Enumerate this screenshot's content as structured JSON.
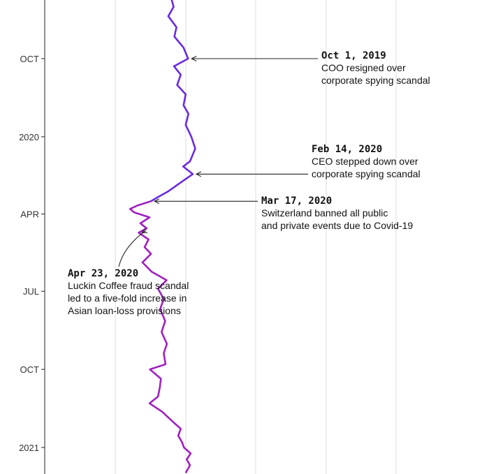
{
  "chart_data": {
    "type": "line",
    "orientation": "vertical-time",
    "title": "",
    "xlabel": "",
    "ylabel": "",
    "grid": true,
    "x_gridlines": 5,
    "time_axis": {
      "labels": [
        "OCT",
        "2020",
        "APR",
        "JUL",
        "OCT",
        "2021"
      ]
    },
    "line_colors": {
      "before": "#6a2be0",
      "after": "#a020c0"
    },
    "series": [
      {
        "points": [
          [
            "2019-07-10",
            0.378
          ],
          [
            "2019-07-20",
            0.356
          ],
          [
            "2019-08-01",
            0.364
          ],
          [
            "2019-08-12",
            0.349
          ],
          [
            "2019-08-25",
            0.372
          ],
          [
            "2019-09-05",
            0.366
          ],
          [
            "2019-09-18",
            0.392
          ],
          [
            "2019-10-01",
            0.405
          ],
          [
            "2019-10-10",
            0.365
          ],
          [
            "2019-10-20",
            0.384
          ],
          [
            "2019-11-01",
            0.374
          ],
          [
            "2019-11-12",
            0.398
          ],
          [
            "2019-11-25",
            0.392
          ],
          [
            "2019-12-05",
            0.406
          ],
          [
            "2019-12-18",
            0.398
          ],
          [
            "2020-01-01",
            0.414
          ],
          [
            "2020-01-15",
            0.425
          ],
          [
            "2020-01-30",
            0.41
          ],
          [
            "2020-02-05",
            0.391
          ],
          [
            "2020-02-14",
            0.418
          ],
          [
            "2020-02-25",
            0.38
          ],
          [
            "2020-03-05",
            0.35
          ],
          [
            "2020-03-12",
            0.32
          ],
          [
            "2020-03-17",
            0.3
          ],
          [
            "2020-03-22",
            0.262
          ],
          [
            "2020-03-26",
            0.241
          ],
          [
            "2020-03-30",
            0.252
          ],
          [
            "2020-04-05",
            0.296
          ],
          [
            "2020-04-12",
            0.27
          ],
          [
            "2020-04-18",
            0.288
          ],
          [
            "2020-04-23",
            0.265
          ],
          [
            "2020-05-01",
            0.293
          ],
          [
            "2020-05-10",
            0.282
          ],
          [
            "2020-05-18",
            0.3
          ],
          [
            "2020-05-28",
            0.276
          ],
          [
            "2020-06-08",
            0.302
          ],
          [
            "2020-06-18",
            0.344
          ],
          [
            "2020-06-28",
            0.32
          ],
          [
            "2020-07-10",
            0.336
          ],
          [
            "2020-07-22",
            0.326
          ],
          [
            "2020-08-05",
            0.34
          ],
          [
            "2020-08-18",
            0.33
          ],
          [
            "2020-09-01",
            0.345
          ],
          [
            "2020-09-12",
            0.336
          ],
          [
            "2020-09-25",
            0.341
          ],
          [
            "2020-10-01",
            0.297
          ],
          [
            "2020-10-12",
            0.328
          ],
          [
            "2020-10-22",
            0.325
          ],
          [
            "2020-11-02",
            0.32
          ],
          [
            "2020-11-10",
            0.296
          ],
          [
            "2020-11-20",
            0.332
          ],
          [
            "2020-12-01",
            0.36
          ],
          [
            "2020-12-10",
            0.384
          ],
          [
            "2020-12-18",
            0.377
          ],
          [
            "2020-12-26",
            0.388
          ],
          [
            "2021-01-01",
            0.393
          ],
          [
            "2021-01-08",
            0.412
          ],
          [
            "2021-01-15",
            0.401
          ],
          [
            "2021-01-22",
            0.41
          ],
          [
            "2021-01-31",
            0.398
          ]
        ]
      }
    ],
    "annotations": [
      {
        "date_label": "Oct 1, 2019",
        "text": [
          "COO resigned over",
          "corporate spying scandal"
        ],
        "at": "2019-10-01",
        "value": 0.405,
        "side": "right",
        "arrow": "straight"
      },
      {
        "date_label": "Feb 14, 2020",
        "text": [
          "CEO stepped down over",
          "corporate spying scandal"
        ],
        "at": "2020-02-14",
        "value": 0.418,
        "side": "right",
        "arrow": "straight"
      },
      {
        "date_label": "Mar 17, 2020",
        "text": [
          "Switzerland banned all public",
          "and private events due to Covid-19"
        ],
        "at": "2020-03-17",
        "value": 0.3,
        "side": "right",
        "arrow": "straight"
      },
      {
        "date_label": "Apr 23, 2020",
        "text": [
          "Luckin Coffee fraud scandal",
          "led to a five-fold increase in",
          "Asian loan-loss provisions"
        ],
        "at": "2020-04-23",
        "value": 0.265,
        "side": "left",
        "arrow": "curved"
      }
    ]
  }
}
